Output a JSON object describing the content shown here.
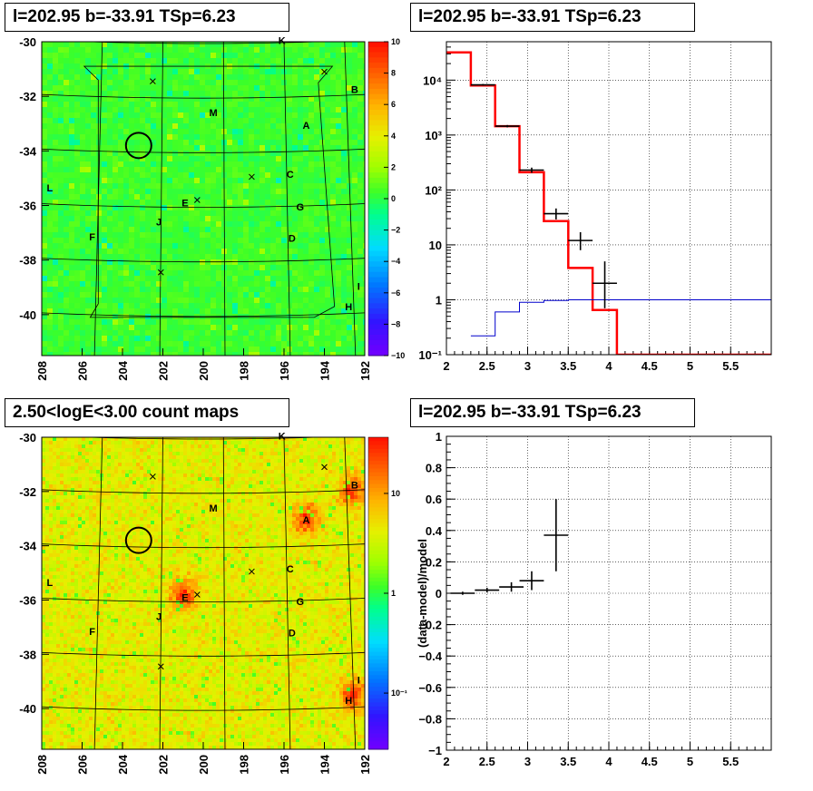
{
  "panels": {
    "tl_title": "l=202.95 b=-33.91 TSp=6.23",
    "tr_title": "l=202.95 b=-33.91 TSp=6.23",
    "bl_title": "2.50<logE<3.00 count maps",
    "br_title": "l=202.95 b=-33.91 TSp=6.23"
  },
  "sources": [
    "K",
    "B",
    "M",
    "A",
    "C",
    "G",
    "D",
    "E",
    "J",
    "F",
    "L",
    "I",
    "H"
  ],
  "chart_data": [
    {
      "type": "heatmap",
      "title": "l=202.95 b=-33.91 TSp=6.23",
      "x_ticks": [
        "208",
        "206",
        "204",
        "202",
        "200",
        "198",
        "196",
        "194",
        "192"
      ],
      "xlim": [
        208,
        192
      ],
      "y_ticks": [
        "-30",
        "-32",
        "-34",
        "-36",
        "-38",
        "-40"
      ],
      "ylim": [
        -41.5,
        -30
      ],
      "colorbar_ticks": [
        "10",
        "8",
        "6",
        "4",
        "2",
        "0",
        "−2",
        "−4",
        "−6",
        "−8",
        "−10"
      ],
      "colorbar_range": [
        -10,
        10
      ],
      "circle_center": {
        "l": 203.2,
        "b": -33.8
      },
      "source_labels": [
        {
          "name": "K",
          "l": 196.1,
          "b": -29.95
        },
        {
          "name": "B",
          "l": 192.5,
          "b": -31.75
        },
        {
          "name": "M",
          "l": 199.5,
          "b": -32.6
        },
        {
          "name": "A",
          "l": 194.9,
          "b": -33.05
        },
        {
          "name": "C",
          "l": 195.7,
          "b": -34.85
        },
        {
          "name": "G",
          "l": 195.2,
          "b": -36.05
        },
        {
          "name": "D",
          "l": 195.6,
          "b": -37.2
        },
        {
          "name": "E",
          "l": 200.9,
          "b": -35.9
        },
        {
          "name": "J",
          "l": 202.2,
          "b": -36.6
        },
        {
          "name": "F",
          "l": 205.5,
          "b": -37.15
        },
        {
          "name": "L",
          "l": 207.6,
          "b": -35.35
        },
        {
          "name": "I",
          "l": 192.3,
          "b": -38.95
        },
        {
          "name": "H",
          "l": 192.8,
          "b": -39.7
        }
      ],
      "cross_markers": [
        {
          "l": 194.0,
          "b": -31.1
        },
        {
          "l": 202.5,
          "b": -31.45
        },
        {
          "l": 197.6,
          "b": -34.95
        },
        {
          "l": 200.3,
          "b": -35.8
        },
        {
          "l": 202.1,
          "b": -38.45
        }
      ]
    },
    {
      "type": "line",
      "title": "l=202.95 b=-33.91 TSp=6.23",
      "yscale": "log",
      "xlim": [
        2,
        6
      ],
      "ylim": [
        0.1,
        50000
      ],
      "x_ticks": [
        "2",
        "2.5",
        "3",
        "3.5",
        "4",
        "4.5",
        "5",
        "5.5"
      ],
      "y_ticks": [
        "10⁻¹",
        "1",
        "10",
        "10²",
        "10³",
        "10⁴"
      ],
      "grid": true,
      "series": [
        {
          "color": "#ff0000",
          "kind": "step",
          "bins": [
            2.0,
            2.3,
            2.6,
            2.9,
            3.2,
            3.5,
            3.8,
            4.1,
            4.4,
            6.0
          ],
          "values": [
            32000,
            8000,
            1450,
            210,
            27,
            3.8,
            0.65,
            0.1,
            0.1
          ]
        },
        {
          "color": "#0000cc",
          "kind": "step",
          "bins": [
            2.3,
            2.6,
            2.9,
            3.2,
            3.5,
            6.0
          ],
          "values": [
            0.22,
            0.6,
            0.9,
            0.97,
            1.0
          ]
        },
        {
          "color": "#000000",
          "kind": "errorbars",
          "points": [
            {
              "x": 2.45,
              "y": 8200,
              "xerr": 0.15,
              "ylo": 7900,
              "yhi": 8500
            },
            {
              "x": 2.75,
              "y": 1450,
              "xerr": 0.15,
              "ylo": 1380,
              "yhi": 1520
            },
            {
              "x": 3.05,
              "y": 230,
              "xerr": 0.15,
              "ylo": 205,
              "yhi": 255
            },
            {
              "x": 3.35,
              "y": 37,
              "xerr": 0.15,
              "ylo": 29,
              "yhi": 46
            },
            {
              "x": 3.65,
              "y": 12,
              "xerr": 0.15,
              "ylo": 8,
              "yhi": 17
            },
            {
              "x": 3.95,
              "y": 2.0,
              "xerr": 0.15,
              "ylo": 0.7,
              "yhi": 5
            }
          ]
        }
      ]
    },
    {
      "type": "heatmap",
      "title": "2.50<logE<3.00 count maps",
      "x_ticks": [
        "208",
        "206",
        "204",
        "202",
        "200",
        "198",
        "196",
        "194",
        "192"
      ],
      "xlim": [
        208,
        192
      ],
      "y_ticks": [
        "-30",
        "-32",
        "-34",
        "-36",
        "-38",
        "-40"
      ],
      "ylim": [
        -41.5,
        -30
      ],
      "colorbar_ticks": [
        "10",
        "1",
        "10⁻¹"
      ],
      "colorbar_scale": "log",
      "hotspots": [
        {
          "name": "A",
          "l": 194.9,
          "b": -33.0
        },
        {
          "name": "B",
          "l": 192.6,
          "b": -32.0
        },
        {
          "name": "E",
          "l": 201.0,
          "b": -35.8
        },
        {
          "name": "H",
          "l": 192.6,
          "b": -39.5
        }
      ]
    },
    {
      "type": "scatter",
      "title": "l=202.95 b=-33.91 TSp=6.23",
      "ylabel": "(data-model)/model",
      "xlim": [
        2,
        6
      ],
      "ylim": [
        -1,
        1
      ],
      "x_ticks": [
        "2",
        "2.5",
        "3",
        "3.5",
        "4",
        "4.5",
        "5",
        "5.5"
      ],
      "y_ticks": [
        "−1",
        "−0.8",
        "−0.6",
        "−0.4",
        "−0.2",
        "0",
        "0.2",
        "0.4",
        "0.6",
        "0.8",
        "1"
      ],
      "grid": true,
      "points": [
        {
          "x": 2.2,
          "y": 0.0,
          "xerr": 0.15,
          "yerr": 0.01
        },
        {
          "x": 2.5,
          "y": 0.02,
          "xerr": 0.15,
          "yerr": 0.015
        },
        {
          "x": 2.8,
          "y": 0.04,
          "xerr": 0.15,
          "yerr": 0.03
        },
        {
          "x": 3.05,
          "y": 0.08,
          "xerr": 0.15,
          "yerr": 0.06
        },
        {
          "x": 3.35,
          "y": 0.37,
          "xerr": 0.15,
          "yerr": 0.23
        }
      ]
    }
  ]
}
